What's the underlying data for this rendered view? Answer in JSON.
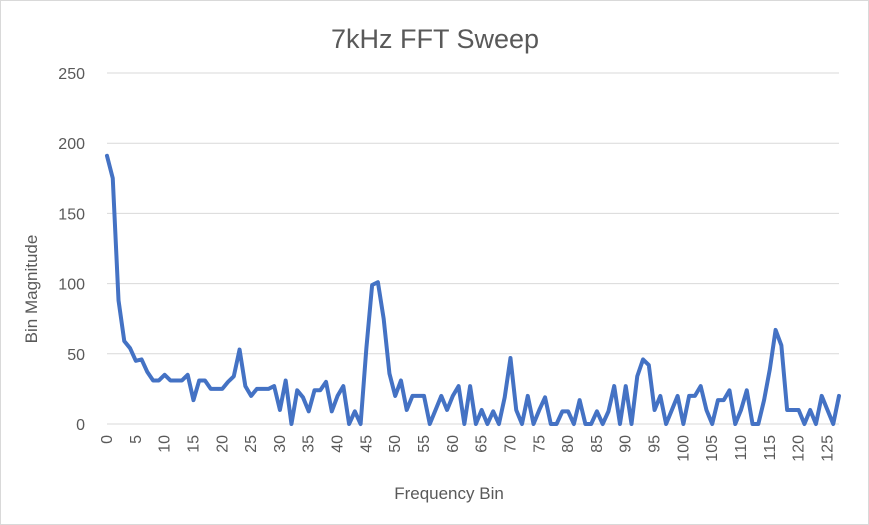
{
  "chart_data": {
    "type": "line",
    "title": "7kHz FFT Sweep",
    "xlabel": "Frequency Bin",
    "ylabel": "Bin Magnitude",
    "xlim": [
      0,
      127
    ],
    "ylim": [
      0,
      250
    ],
    "yticks": [
      0,
      50,
      100,
      150,
      200,
      250
    ],
    "xticks": [
      0,
      5,
      10,
      15,
      20,
      25,
      30,
      35,
      40,
      45,
      50,
      55,
      60,
      65,
      70,
      75,
      80,
      85,
      90,
      95,
      100,
      105,
      110,
      115,
      120,
      125
    ],
    "grid": true,
    "legend": "none",
    "colors": {
      "series": "#4472c4"
    },
    "series": [
      {
        "values": [
          191,
          175,
          88,
          59,
          54,
          45,
          46,
          37,
          31,
          31,
          35,
          31,
          31,
          31,
          35,
          17,
          31,
          31,
          25,
          25,
          25,
          30,
          34,
          53,
          27,
          20,
          25,
          25,
          25,
          27,
          10,
          31,
          0,
          24,
          19,
          9,
          24,
          24,
          30,
          9,
          20,
          27,
          0,
          9,
          0,
          54,
          99,
          101,
          75,
          36,
          20,
          31,
          10,
          20,
          20,
          20,
          0,
          10,
          20,
          10,
          20,
          27,
          0,
          27,
          0,
          10,
          0,
          9,
          0,
          19,
          47,
          10,
          0,
          20,
          0,
          10,
          19,
          0,
          0,
          9,
          9,
          0,
          17,
          0,
          0,
          9,
          0,
          9,
          27,
          0,
          27,
          0,
          34,
          46,
          42,
          10,
          20,
          0,
          10,
          20,
          0,
          20,
          20,
          27,
          10,
          0,
          17,
          17,
          24,
          0,
          10,
          24,
          0,
          0,
          17,
          39,
          67,
          56,
          10,
          10,
          10,
          0,
          10,
          0,
          20,
          10,
          0,
          20
        ]
      }
    ]
  }
}
